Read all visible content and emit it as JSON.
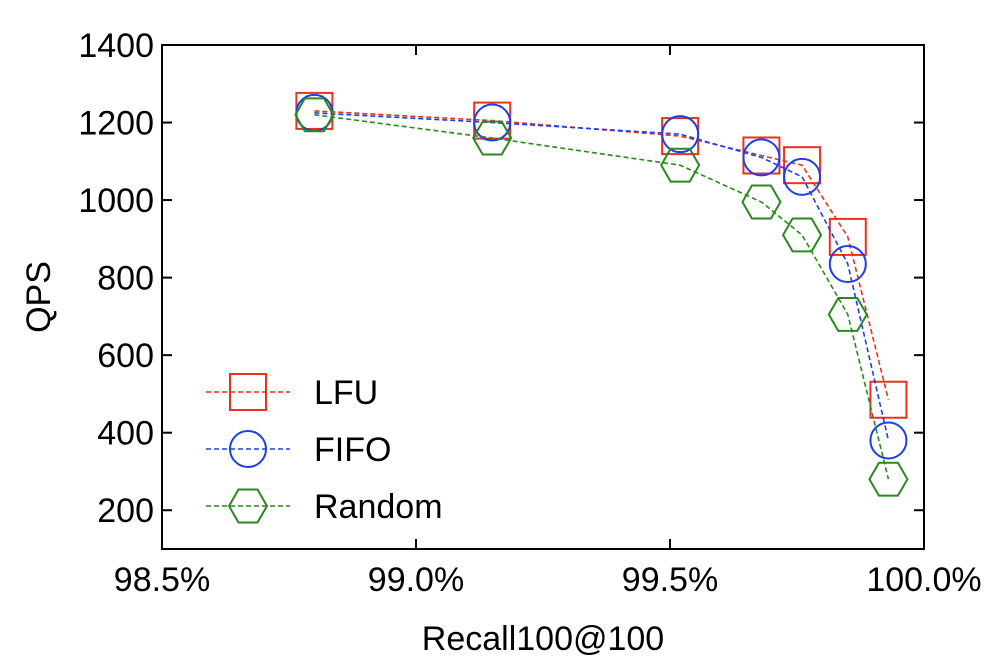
{
  "chart_data": {
    "type": "line",
    "title": "",
    "xlabel": "Recall100@100",
    "ylabel": "QPS",
    "xlim": [
      98.5,
      100.0
    ],
    "ylim": [
      100,
      1400
    ],
    "x_ticks": [
      98.5,
      99.0,
      99.5,
      100.0
    ],
    "x_tick_labels": [
      "98.5%",
      "99.0%",
      "99.5%",
      "100.0%"
    ],
    "y_ticks": [
      200,
      400,
      600,
      800,
      1000,
      1200,
      1400
    ],
    "y_tick_labels": [
      "200",
      "400",
      "600",
      "800",
      "1000",
      "1200",
      "1400"
    ],
    "grid": false,
    "legend_position": "bottom-left",
    "series": [
      {
        "name": "LFU",
        "color": "#e8321e",
        "marker": "square",
        "x": [
          98.8,
          99.15,
          99.52,
          99.68,
          99.76,
          99.85,
          99.93
        ],
        "y": [
          1230,
          1205,
          1165,
          1115,
          1090,
          905,
          485
        ]
      },
      {
        "name": "FIFO",
        "color": "#1f3ee8",
        "marker": "circle",
        "x": [
          98.8,
          99.15,
          99.52,
          99.68,
          99.76,
          99.85,
          99.93
        ],
        "y": [
          1225,
          1200,
          1170,
          1110,
          1060,
          835,
          380
        ]
      },
      {
        "name": "Random",
        "color": "#2a8a1e",
        "marker": "hexagon",
        "x": [
          98.8,
          99.15,
          99.52,
          99.68,
          99.76,
          99.85,
          99.93
        ],
        "y": [
          1220,
          1160,
          1090,
          995,
          910,
          705,
          280
        ]
      }
    ]
  }
}
